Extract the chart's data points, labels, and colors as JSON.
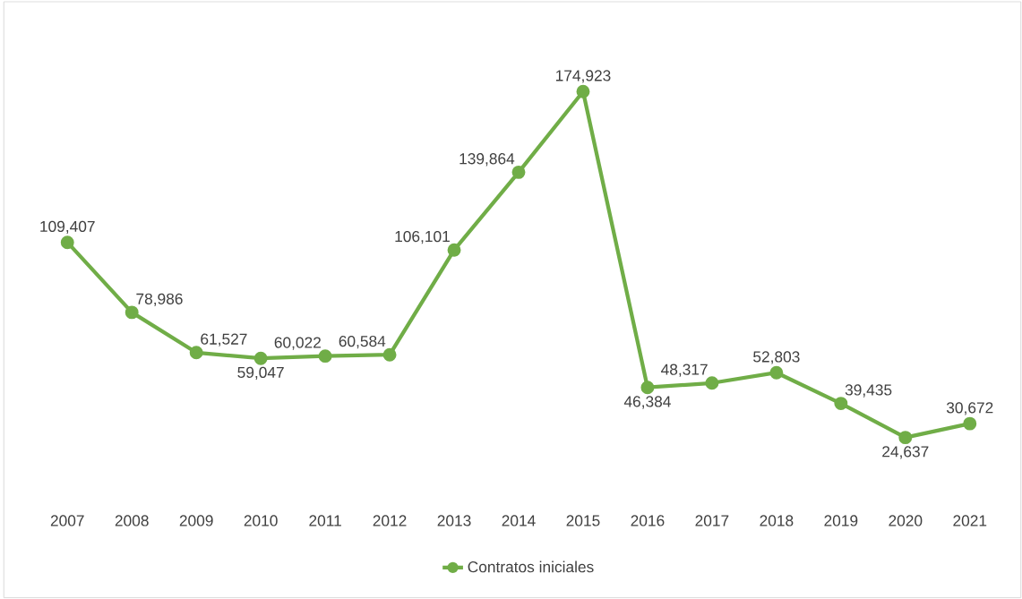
{
  "chart_data": {
    "type": "line",
    "categories": [
      "2007",
      "2008",
      "2009",
      "2010",
      "2011",
      "2012",
      "2013",
      "2014",
      "2015",
      "2016",
      "2017",
      "2018",
      "2019",
      "2020",
      "2021"
    ],
    "series": [
      {
        "name": "Contratos iniciales",
        "color": "#70ad47",
        "values": [
          109407,
          78986,
          61527,
          59047,
          60022,
          60584,
          106101,
          139864,
          174923,
          46384,
          48317,
          52803,
          39435,
          24637,
          30672
        ],
        "value_labels": [
          "109,407",
          "78,986",
          "61,527",
          "59,047",
          "60,022",
          "60,584",
          "106,101",
          "139,864",
          "174,923",
          "46,384",
          "48,317",
          "52,803",
          "39,435",
          "24,637",
          "30,672"
        ]
      }
    ],
    "marker": "circle",
    "legend": "bottom",
    "grid": false
  }
}
